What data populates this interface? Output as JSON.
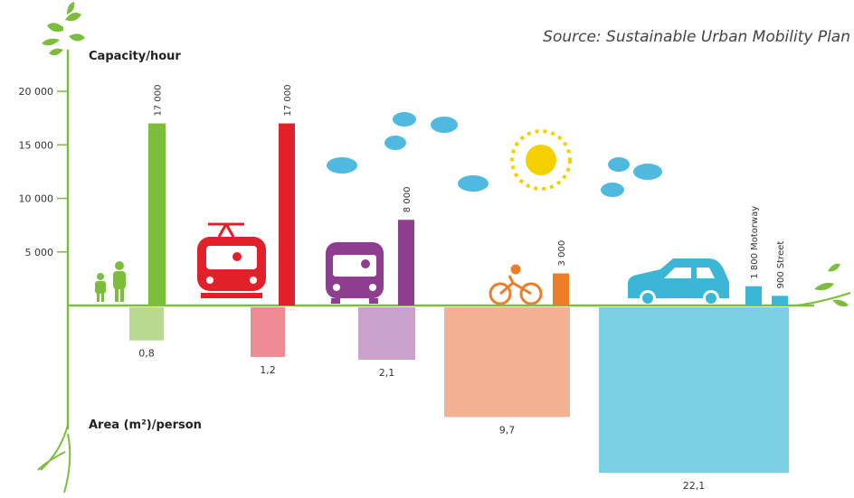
{
  "source": "Source: Sustainable Urban Mobility Plan",
  "chart_data": [
    {
      "type": "bar",
      "ylabel": "Capacity/hour",
      "ylim": [
        0,
        20000
      ],
      "yticks": [
        {
          "value": 5000,
          "label": "5 000"
        },
        {
          "value": 10000,
          "label": "10 000"
        },
        {
          "value": 15000,
          "label": "15 000"
        },
        {
          "value": 20000,
          "label": "20 000"
        }
      ],
      "values": [
        17000,
        17000,
        8000,
        3000,
        1800,
        900
      ],
      "value_labels": [
        "17 000",
        "17 000",
        "8 000",
        "3 000",
        "1 800 Motorway",
        "900 Street"
      ],
      "colors": [
        "#7cbd3c",
        "#e2202a",
        "#8e3d8f",
        "#ee7d2a",
        "#3cb6d6",
        "#3cb6d6"
      ]
    },
    {
      "type": "area-bar",
      "ylabel": "Area (m²)/person",
      "values": [
        0.8,
        1.2,
        2.1,
        9.7,
        22.1
      ],
      "value_labels": [
        "0,8",
        "1,2",
        "2,1",
        "9,7",
        "22,1"
      ],
      "colors": [
        "#b8d98f",
        "#ee8c96",
        "#caa2cc",
        "#f2b192",
        "#7bd0e4"
      ]
    }
  ]
}
